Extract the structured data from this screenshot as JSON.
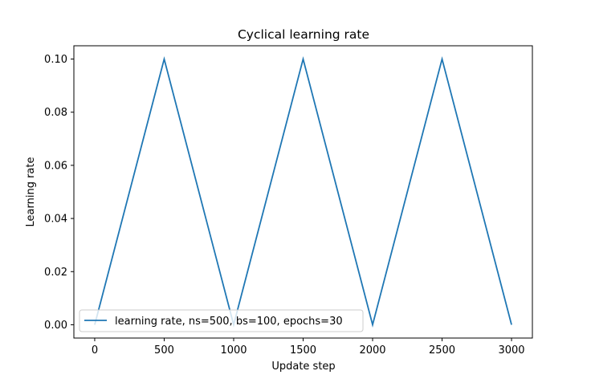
{
  "chart_data": {
    "type": "line",
    "title": "Cyclical learning rate",
    "xlabel": "Update step",
    "ylabel": "Learning rate",
    "xlim": [
      -150,
      3150
    ],
    "ylim": [
      -0.005,
      0.105
    ],
    "xticks": [
      0,
      500,
      1000,
      1500,
      2000,
      2500,
      3000
    ],
    "xtick_labels": [
      "0",
      "500",
      "1000",
      "1500",
      "2000",
      "2500",
      "3000"
    ],
    "yticks": [
      0.0,
      0.02,
      0.04,
      0.06,
      0.08,
      0.1
    ],
    "ytick_labels": [
      "0.00",
      "0.02",
      "0.04",
      "0.06",
      "0.08",
      "0.10"
    ],
    "grid": false,
    "legend_position": "lower-left",
    "colors": {
      "series": "#1f77b4"
    },
    "series": [
      {
        "name": "learning rate, ns=500, bs=100, epochs=30",
        "x": [
          0,
          500,
          1000,
          1500,
          2000,
          2500,
          3000
        ],
        "y": [
          0.0,
          0.1,
          0.0,
          0.1,
          0.0,
          0.1,
          0.0
        ]
      }
    ]
  }
}
